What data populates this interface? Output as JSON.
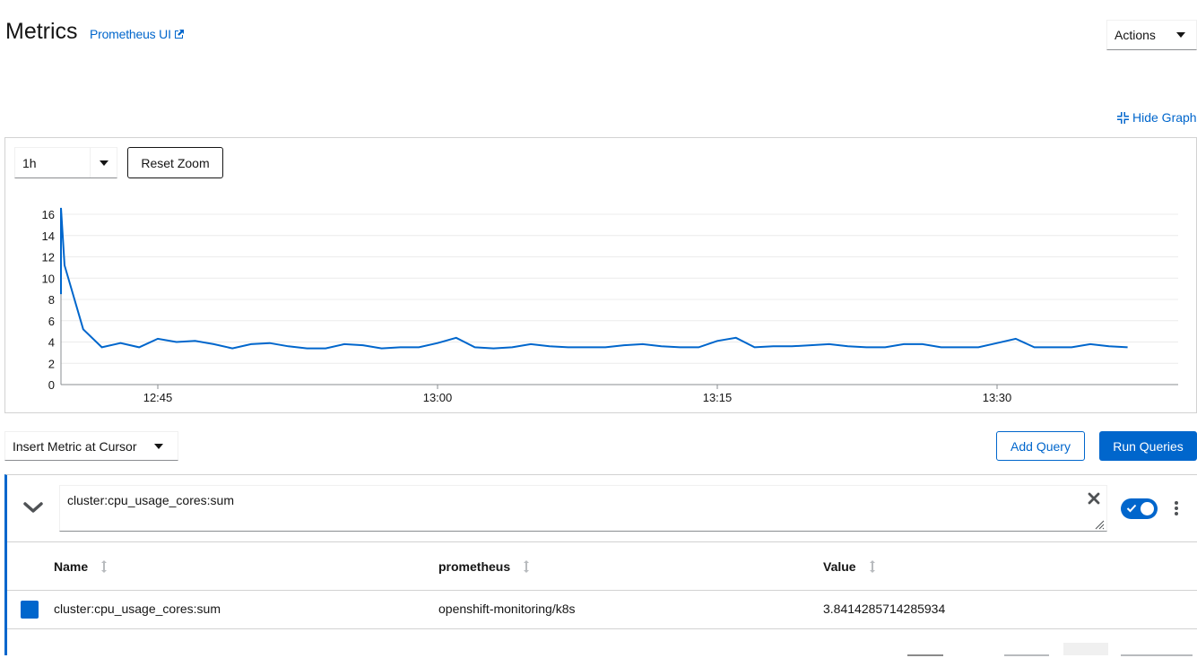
{
  "header": {
    "title": "Metrics",
    "prometheus_link": "Prometheus UI",
    "actions_label": "Actions"
  },
  "graph": {
    "hide_graph_label": "Hide Graph",
    "time_range": "1h",
    "reset_zoom_label": "Reset Zoom",
    "series_color": "#0066cc"
  },
  "chart_data": {
    "type": "line",
    "title": "",
    "xlabel": "",
    "ylabel": "",
    "x_tick_labels": [
      "12:45",
      "13:00",
      "13:15",
      "13:30"
    ],
    "y_tick_labels": [
      "0",
      "2",
      "4",
      "6",
      "8",
      "10",
      "12",
      "14",
      "16"
    ],
    "ylim": [
      0,
      16
    ],
    "grid": true,
    "series": [
      {
        "name": "cluster:cpu_usage_cores:sum",
        "color": "#0066cc",
        "x": [
          "12:38",
          "12:39",
          "12:40",
          "12:41",
          "12:42",
          "12:43",
          "12:44",
          "12:45",
          "12:46",
          "12:47",
          "12:48",
          "12:49",
          "12:50",
          "12:51",
          "12:52",
          "12:53",
          "12:54",
          "12:55",
          "12:56",
          "12:57",
          "12:58",
          "12:59",
          "13:00",
          "13:01",
          "13:02",
          "13:03",
          "13:04",
          "13:05",
          "13:06",
          "13:07",
          "13:08",
          "13:09",
          "13:10",
          "13:11",
          "13:12",
          "13:13",
          "13:14",
          "13:15",
          "13:16",
          "13:17",
          "13:18",
          "13:19",
          "13:20",
          "13:21",
          "13:22",
          "13:23",
          "13:24",
          "13:25",
          "13:26",
          "13:27",
          "13:28",
          "13:29",
          "13:30",
          "13:31",
          "13:32",
          "13:33",
          "13:34",
          "13:35",
          "13:36",
          "13:37"
        ],
        "values": [
          8.5,
          16.6,
          11.2,
          5.2,
          3.5,
          3.9,
          3.5,
          4.3,
          4.0,
          4.1,
          3.8,
          3.4,
          3.8,
          3.9,
          3.6,
          3.4,
          3.4,
          3.8,
          3.7,
          3.4,
          3.5,
          3.5,
          3.9,
          4.4,
          3.5,
          3.4,
          3.5,
          3.8,
          3.6,
          3.5,
          3.5,
          3.5,
          3.7,
          3.8,
          3.6,
          3.5,
          3.5,
          4.1,
          4.4,
          3.5,
          3.6,
          3.6,
          3.7,
          3.8,
          3.6,
          3.5,
          3.5,
          3.8,
          3.8,
          3.5,
          3.5,
          3.5,
          3.9,
          4.3,
          3.5,
          3.5,
          3.5,
          3.8,
          3.6,
          3.5
        ]
      }
    ]
  },
  "query_bar": {
    "insert_metric_label": "Insert Metric at Cursor",
    "add_query_label": "Add Query",
    "run_queries_label": "Run Queries"
  },
  "query": {
    "expression": "cluster:cpu_usage_cores:sum",
    "enabled": true
  },
  "table": {
    "columns": [
      "Name",
      "prometheus",
      "Value"
    ],
    "rows": [
      {
        "name": "cluster:cpu_usage_cores:sum",
        "prometheus": "openshift-monitoring/k8s",
        "value": "3.8414285714285934",
        "color": "#0066cc"
      }
    ]
  }
}
